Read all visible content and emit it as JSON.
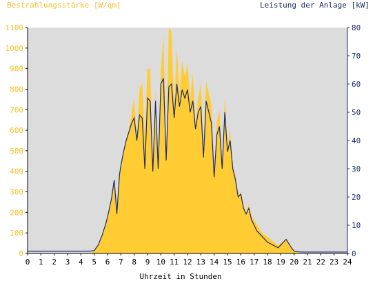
{
  "chart_data": {
    "type": "area",
    "left_title": "Bestrahlungsstärke [W/qm]",
    "right_title": "Leistung der Anlage [kW]",
    "xlabel": "Uhrzeit in Stunden",
    "x_ticks": [
      "0",
      "1",
      "2",
      "3",
      "4",
      "5",
      "6",
      "7",
      "8",
      "9",
      "10",
      "11",
      "12",
      "13",
      "14",
      "15",
      "16",
      "17",
      "18",
      "19",
      "20",
      "21",
      "22",
      "23",
      "24"
    ],
    "y_left_ticks": [
      "0",
      "100",
      "200",
      "300",
      "400",
      "500",
      "600",
      "700",
      "800",
      "900",
      "1000",
      "1100"
    ],
    "y_right_ticks": [
      "0",
      "10",
      "20",
      "30",
      "40",
      "50",
      "60",
      "70",
      "80"
    ],
    "xlim": [
      0,
      24
    ],
    "ylim_left": [
      0,
      1100
    ],
    "ylim_right": [
      0,
      80
    ],
    "grid": false,
    "colors": {
      "plot_bg": "#dcdcdc",
      "irradiance_fill": "#ffcc33",
      "power_line": "#1b2a6b",
      "axis": "#000000"
    },
    "series": [
      {
        "axis": "left",
        "style": "area",
        "x": [
          0,
          4.6,
          5,
          5.3,
          5.6,
          5.9,
          6.1,
          6.3,
          6.5,
          6.7,
          6.9,
          7.0,
          7.2,
          7.4,
          7.6,
          7.8,
          8.0,
          8.2,
          8.4,
          8.6,
          8.8,
          9.0,
          9.2,
          9.4,
          9.6,
          9.8,
          10.0,
          10.2,
          10.4,
          10.6,
          10.8,
          11.0,
          11.2,
          11.4,
          11.6,
          11.8,
          12.0,
          12.2,
          12.4,
          12.6,
          12.8,
          13.0,
          13.2,
          13.4,
          13.6,
          13.8,
          14.0,
          14.2,
          14.4,
          14.6,
          14.8,
          15.0,
          15.2,
          15.4,
          15.6,
          15.8,
          16.0,
          16.2,
          16.4,
          16.6,
          16.8,
          17.0,
          17.2,
          17.4,
          17.6,
          17.8,
          18.0,
          18.2,
          18.4,
          18.6,
          18.8,
          19.0,
          19.2,
          19.4,
          19.6,
          19.8,
          20.0,
          20.3,
          20.6,
          21,
          24
        ],
        "values": [
          0,
          0,
          10,
          40,
          90,
          150,
          210,
          270,
          360,
          200,
          380,
          420,
          500,
          560,
          600,
          680,
          760,
          560,
          800,
          830,
          560,
          900,
          900,
          400,
          800,
          420,
          880,
          1060,
          460,
          1100,
          1080,
          700,
          1000,
          780,
          940,
          860,
          920,
          750,
          880,
          620,
          760,
          830,
          500,
          840,
          780,
          720,
          380,
          640,
          700,
          440,
          760,
          520,
          600,
          420,
          380,
          280,
          300,
          240,
          200,
          240,
          180,
          160,
          140,
          120,
          100,
          90,
          80,
          70,
          60,
          50,
          40,
          50,
          60,
          70,
          50,
          30,
          10,
          5,
          0,
          0,
          0
        ],
        "name": ""
      },
      {
        "axis": "right",
        "style": "line",
        "x": [
          0,
          4.6,
          5,
          5.3,
          5.6,
          5.9,
          6.1,
          6.3,
          6.5,
          6.7,
          6.9,
          7.0,
          7.2,
          7.4,
          7.6,
          7.8,
          8.0,
          8.2,
          8.4,
          8.6,
          8.8,
          9.0,
          9.2,
          9.4,
          9.6,
          9.8,
          10.0,
          10.2,
          10.4,
          10.6,
          10.8,
          11.0,
          11.2,
          11.4,
          11.6,
          11.8,
          12.0,
          12.2,
          12.4,
          12.6,
          12.8,
          13.0,
          13.2,
          13.4,
          13.6,
          13.8,
          14.0,
          14.2,
          14.4,
          14.6,
          14.8,
          15.0,
          15.2,
          15.4,
          15.6,
          15.8,
          16.0,
          16.2,
          16.4,
          16.6,
          16.8,
          17.0,
          17.2,
          17.4,
          17.6,
          17.8,
          18.0,
          18.2,
          18.4,
          18.6,
          18.8,
          19.0,
          19.2,
          19.4,
          19.6,
          19.8,
          20.0,
          20.3,
          20.6,
          21,
          24
        ],
        "values": [
          0.8,
          0.8,
          1,
          3,
          6.5,
          11,
          15,
          19.5,
          26,
          14,
          28,
          31,
          36,
          40,
          43,
          46,
          48,
          40,
          49,
          48,
          30,
          55,
          54,
          29,
          54,
          30,
          60,
          62,
          33,
          59,
          60,
          48,
          60,
          52,
          58,
          55,
          58,
          50,
          54,
          44,
          50,
          52,
          34,
          54,
          50,
          46,
          27,
          42,
          45,
          30,
          50,
          36,
          40,
          30,
          26,
          20,
          21,
          16,
          14,
          16,
          12,
          10,
          8,
          7,
          6,
          5,
          4,
          3.5,
          3,
          2.5,
          2,
          3,
          4,
          5,
          3.5,
          2,
          0.8,
          0.6,
          0.5,
          0.5,
          0.5
        ],
        "name": ""
      }
    ]
  }
}
